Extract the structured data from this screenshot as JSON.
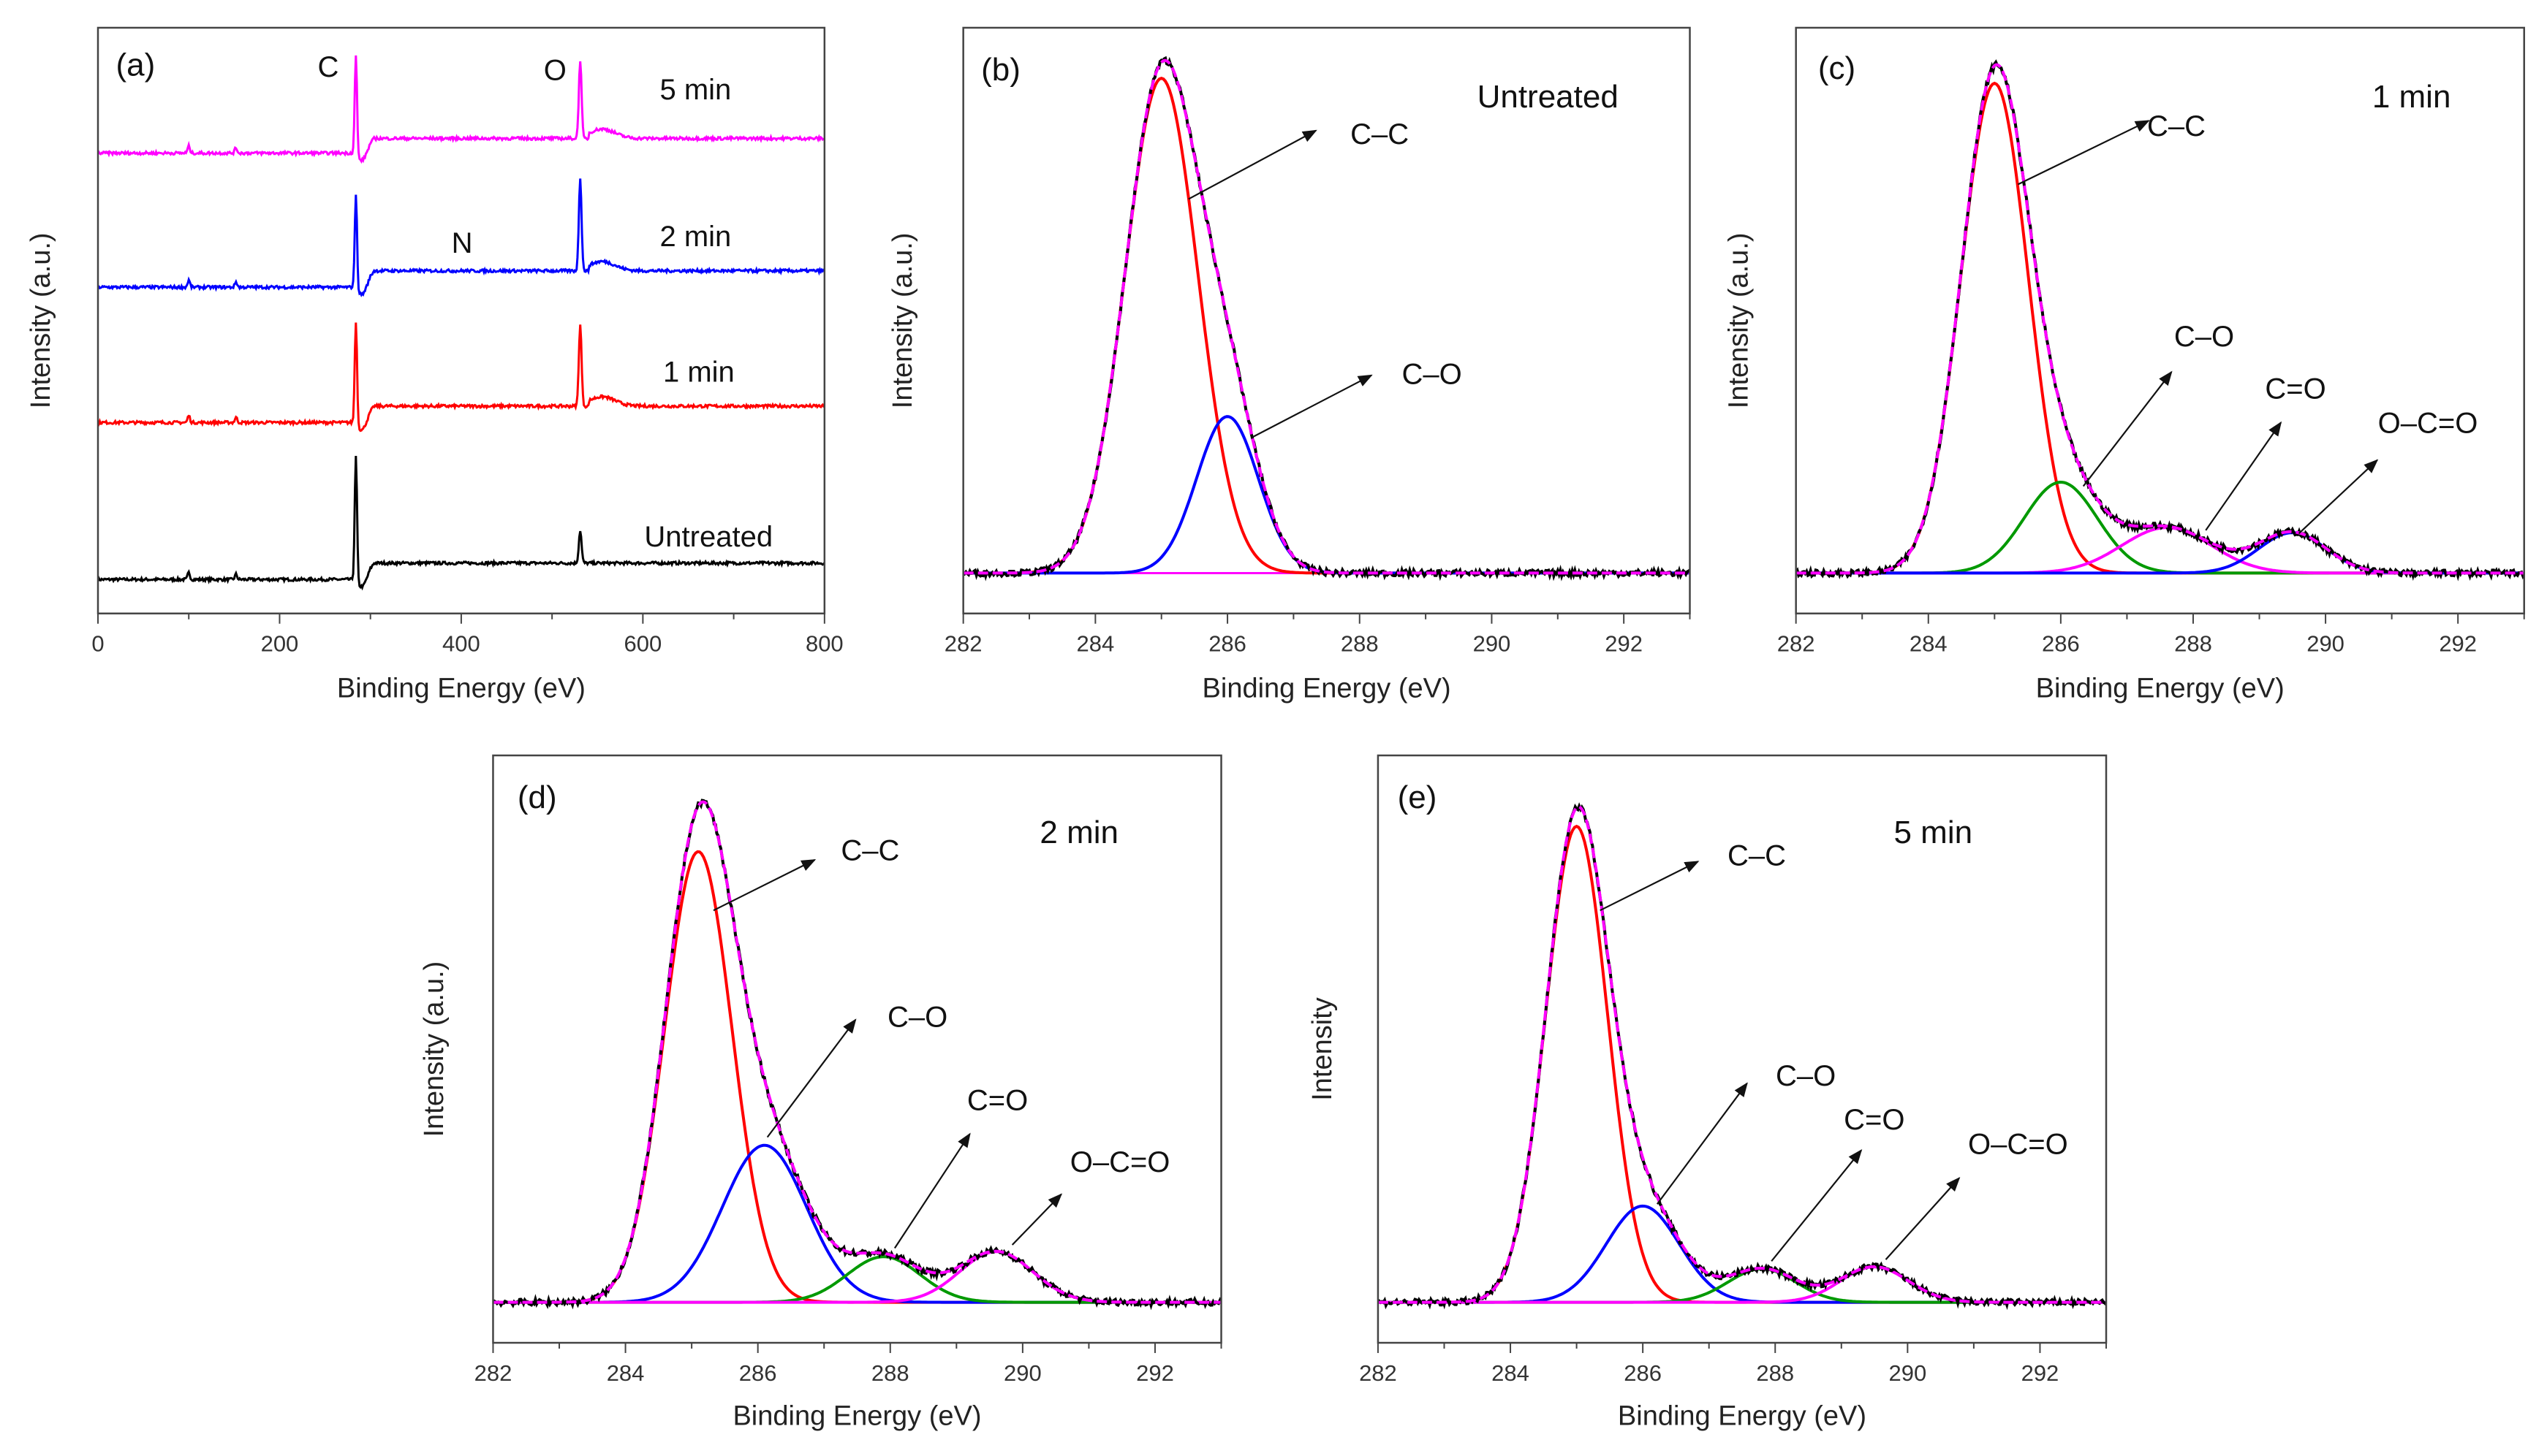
{
  "chart_data": [
    {
      "id": "a",
      "type": "line",
      "panel_label": "(a)",
      "xlabel": "Binding Energy (eV)",
      "ylabel": "Intensity (a.u.)",
      "xlim": [
        0,
        800
      ],
      "ylim": [
        0,
        100
      ],
      "xticks": [
        0,
        200,
        400,
        600,
        800
      ],
      "peak_labels": [
        "C",
        "O",
        "N"
      ],
      "series": [
        {
          "name": "Untreated",
          "color": "#000000",
          "offset": 5.8,
          "step": 2.8,
          "c_peak": 21.7,
          "o_peak": 5.6
        },
        {
          "name": "1 min",
          "color": "#ff0000",
          "offset": 32.6,
          "step": 2.8,
          "c_peak": 18.0,
          "o_peak": 14.0
        },
        {
          "name": "2 min",
          "color": "#0000ff",
          "offset": 55.7,
          "step": 2.8,
          "c_peak": 16.4,
          "o_peak": 15.9
        },
        {
          "name": "5 min",
          "color": "#ff00ff",
          "offset": 78.6,
          "step": 2.5,
          "c_peak": 17.3,
          "o_peak": 13.4
        }
      ]
    },
    {
      "id": "b",
      "type": "line",
      "panel_label": "(b)",
      "sample": "Untreated",
      "xlabel": "Binding Energy (eV)",
      "ylabel": "Intensity (a.u.)",
      "xlim": [
        282,
        293
      ],
      "ylim": [
        -0.08,
        1.08
      ],
      "xticks": [
        282,
        284,
        286,
        288,
        290,
        292
      ],
      "baseline_color": "#ff00ff",
      "components": [
        {
          "name": "C–C",
          "color": "#ff0000",
          "center": 285.0,
          "height": 0.98,
          "fwhm": 1.3
        },
        {
          "name": "C–O",
          "color": "#0000ff",
          "center": 286.0,
          "height": 0.31,
          "fwhm": 1.1
        }
      ]
    },
    {
      "id": "c",
      "type": "line",
      "panel_label": "(c)",
      "sample": "1 min",
      "xlabel": "Binding Energy (eV)",
      "ylabel": "Intensity (a.u.)",
      "xlim": [
        282,
        293
      ],
      "ylim": [
        -0.08,
        1.08
      ],
      "xticks": [
        282,
        284,
        286,
        288,
        290,
        292
      ],
      "baseline_color": "#0000ff",
      "components": [
        {
          "name": "C–C",
          "color": "#ff0000",
          "center": 285.0,
          "height": 0.97,
          "fwhm": 1.2
        },
        {
          "name": "C–O",
          "color": "#009900",
          "center": 286.0,
          "height": 0.18,
          "fwhm": 1.3
        },
        {
          "name": "C=O",
          "color": "#ff00ff",
          "center": 287.6,
          "height": 0.09,
          "fwhm": 1.6
        },
        {
          "name": "O–C=O",
          "color": "#0000ff",
          "center": 289.5,
          "height": 0.08,
          "fwhm": 1.2
        }
      ]
    },
    {
      "id": "d",
      "type": "line",
      "panel_label": "(d)",
      "sample": "2 min",
      "xlabel": "Binding Energy (eV)",
      "ylabel": "Intensity (a.u.)",
      "xlim": [
        282,
        293
      ],
      "ylim": [
        -0.08,
        1.08
      ],
      "xticks": [
        282,
        284,
        286,
        288,
        290,
        292
      ],
      "baseline_color": "#0000ff",
      "components": [
        {
          "name": "C–C",
          "color": "#ff0000",
          "center": 285.1,
          "height": 0.89,
          "fwhm": 1.2
        },
        {
          "name": "C–O",
          "color": "#0000ff",
          "center": 286.1,
          "height": 0.31,
          "fwhm": 1.5
        },
        {
          "name": "C=O",
          "color": "#009900",
          "center": 287.9,
          "height": 0.09,
          "fwhm": 1.3
        },
        {
          "name": "O–C=O",
          "color": "#ff00ff",
          "center": 289.6,
          "height": 0.1,
          "fwhm": 1.3
        }
      ]
    },
    {
      "id": "e",
      "type": "line",
      "panel_label": "(e)",
      "sample": "5 min",
      "xlabel": "Binding Energy (eV)",
      "ylabel": "Intensity",
      "xlim": [
        282,
        293
      ],
      "ylim": [
        -0.08,
        1.08
      ],
      "xticks": [
        282,
        284,
        286,
        288,
        290,
        292
      ],
      "baseline_color": "#0000ff",
      "components": [
        {
          "name": "C–C",
          "color": "#ff0000",
          "center": 285.0,
          "height": 0.94,
          "fwhm": 1.1
        },
        {
          "name": "C–O",
          "color": "#0000ff",
          "center": 286.0,
          "height": 0.19,
          "fwhm": 1.3
        },
        {
          "name": "C=O",
          "color": "#009900",
          "center": 287.8,
          "height": 0.066,
          "fwhm": 1.2
        },
        {
          "name": "O–C=O",
          "color": "#ff00ff",
          "center": 289.5,
          "height": 0.07,
          "fwhm": 1.2
        }
      ]
    }
  ]
}
